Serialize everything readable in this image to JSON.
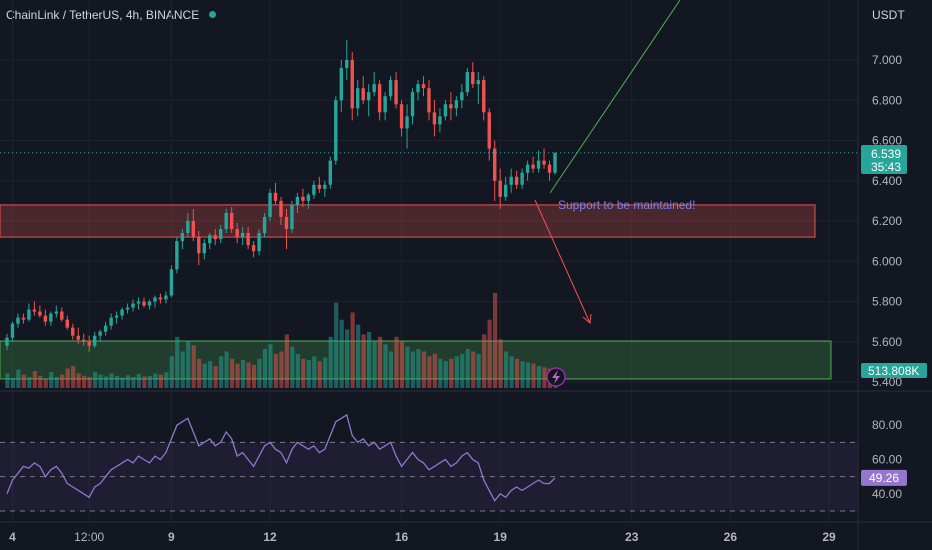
{
  "header": {
    "symbol": "ChainLink / TetherUS, 4h, BINANCE",
    "currency": "USDT"
  },
  "colors": {
    "up": "#26a69a",
    "down": "#ef5350",
    "text": "#b2b5be",
    "background": "#131722",
    "rsi": "#9575cd",
    "status": "#26a69a"
  },
  "chart_data": {
    "type": "candlestick",
    "y_ticks": [
      "7.000",
      "6.800",
      "6.600",
      "6.400",
      "6.200",
      "6.000",
      "5.800",
      "5.600",
      "5.400"
    ],
    "ylim": [
      5.4,
      7.0
    ],
    "x_ticks": [
      {
        "label": "4",
        "bar": 1
      },
      {
        "label": "12:00",
        "bar": 15
      },
      {
        "label": "9",
        "bar": 30
      },
      {
        "label": "12",
        "bar": 48
      },
      {
        "label": "16",
        "bar": 72
      },
      {
        "label": "19",
        "bar": 90
      },
      {
        "label": "23",
        "bar": 114
      },
      {
        "label": "26",
        "bar": 132
      },
      {
        "label": "29",
        "bar": 150
      }
    ],
    "ohlc": [
      [
        5.58,
        5.64,
        5.56,
        5.62
      ],
      [
        5.62,
        5.7,
        5.6,
        5.69
      ],
      [
        5.69,
        5.74,
        5.67,
        5.72
      ],
      [
        5.72,
        5.74,
        5.69,
        5.71
      ],
      [
        5.71,
        5.79,
        5.7,
        5.76
      ],
      [
        5.76,
        5.8,
        5.73,
        5.75
      ],
      [
        5.75,
        5.78,
        5.72,
        5.73
      ],
      [
        5.73,
        5.76,
        5.68,
        5.7
      ],
      [
        5.7,
        5.75,
        5.68,
        5.74
      ],
      [
        5.74,
        5.78,
        5.72,
        5.75
      ],
      [
        5.75,
        5.77,
        5.7,
        5.71
      ],
      [
        5.71,
        5.73,
        5.66,
        5.67
      ],
      [
        5.67,
        5.69,
        5.61,
        5.63
      ],
      [
        5.63,
        5.67,
        5.59,
        5.61
      ],
      [
        5.61,
        5.64,
        5.58,
        5.6
      ],
      [
        5.6,
        5.63,
        5.55,
        5.58
      ],
      [
        5.58,
        5.65,
        5.57,
        5.63
      ],
      [
        5.63,
        5.66,
        5.6,
        5.65
      ],
      [
        5.65,
        5.7,
        5.63,
        5.68
      ],
      [
        5.68,
        5.74,
        5.66,
        5.72
      ],
      [
        5.72,
        5.75,
        5.69,
        5.73
      ],
      [
        5.73,
        5.77,
        5.71,
        5.76
      ],
      [
        5.76,
        5.79,
        5.74,
        5.77
      ],
      [
        5.77,
        5.81,
        5.75,
        5.79
      ],
      [
        5.79,
        5.82,
        5.76,
        5.8
      ],
      [
        5.8,
        5.82,
        5.77,
        5.78
      ],
      [
        5.78,
        5.81,
        5.76,
        5.8
      ],
      [
        5.8,
        5.83,
        5.77,
        5.82
      ],
      [
        5.82,
        5.84,
        5.79,
        5.81
      ],
      [
        5.81,
        5.85,
        5.79,
        5.83
      ],
      [
        5.83,
        5.98,
        5.82,
        5.96
      ],
      [
        5.96,
        6.12,
        5.94,
        6.1
      ],
      [
        6.1,
        6.16,
        6.06,
        6.14
      ],
      [
        6.14,
        6.24,
        6.12,
        6.2
      ],
      [
        6.2,
        6.26,
        6.1,
        6.12
      ],
      [
        6.12,
        6.15,
        5.98,
        6.04
      ],
      [
        6.04,
        6.11,
        6.01,
        6.09
      ],
      [
        6.09,
        6.14,
        6.06,
        6.13
      ],
      [
        6.13,
        6.16,
        6.08,
        6.11
      ],
      [
        6.11,
        6.18,
        6.09,
        6.16
      ],
      [
        6.16,
        6.26,
        6.14,
        6.24
      ],
      [
        6.24,
        6.27,
        6.14,
        6.16
      ],
      [
        6.16,
        6.19,
        6.09,
        6.12
      ],
      [
        6.12,
        6.17,
        6.08,
        6.14
      ],
      [
        6.14,
        6.17,
        6.06,
        6.08
      ],
      [
        6.08,
        6.1,
        6.02,
        6.05
      ],
      [
        6.05,
        6.16,
        6.03,
        6.14
      ],
      [
        6.14,
        6.24,
        6.12,
        6.22
      ],
      [
        6.22,
        6.36,
        6.2,
        6.34
      ],
      [
        6.34,
        6.39,
        6.28,
        6.3
      ],
      [
        6.3,
        6.32,
        6.18,
        6.22
      ],
      [
        6.22,
        6.26,
        6.06,
        6.16
      ],
      [
        6.16,
        6.3,
        6.14,
        6.28
      ],
      [
        6.28,
        6.34,
        6.24,
        6.32
      ],
      [
        6.32,
        6.36,
        6.27,
        6.3
      ],
      [
        6.3,
        6.34,
        6.26,
        6.33
      ],
      [
        6.33,
        6.4,
        6.31,
        6.38
      ],
      [
        6.38,
        6.42,
        6.34,
        6.36
      ],
      [
        6.36,
        6.4,
        6.32,
        6.38
      ],
      [
        6.38,
        6.52,
        6.36,
        6.5
      ],
      [
        6.5,
        6.82,
        6.48,
        6.8
      ],
      [
        6.8,
        7.0,
        6.74,
        6.96
      ],
      [
        6.96,
        7.1,
        6.9,
        7.0
      ],
      [
        7.0,
        7.04,
        6.7,
        6.76
      ],
      [
        6.76,
        6.9,
        6.72,
        6.86
      ],
      [
        6.86,
        6.92,
        6.78,
        6.8
      ],
      [
        6.8,
        6.88,
        6.72,
        6.84
      ],
      [
        6.84,
        6.94,
        6.82,
        6.88
      ],
      [
        6.88,
        6.9,
        6.7,
        6.74
      ],
      [
        6.74,
        6.84,
        6.7,
        6.82
      ],
      [
        6.82,
        6.92,
        6.8,
        6.9
      ],
      [
        6.9,
        6.94,
        6.76,
        6.78
      ],
      [
        6.78,
        6.8,
        6.62,
        6.66
      ],
      [
        6.66,
        6.78,
        6.56,
        6.72
      ],
      [
        6.72,
        6.86,
        6.68,
        6.84
      ],
      [
        6.84,
        6.9,
        6.8,
        6.88
      ],
      [
        6.88,
        6.92,
        6.82,
        6.86
      ],
      [
        6.86,
        6.9,
        6.7,
        6.74
      ],
      [
        6.74,
        6.8,
        6.62,
        6.68
      ],
      [
        6.68,
        6.76,
        6.64,
        6.72
      ],
      [
        6.72,
        6.8,
        6.7,
        6.78
      ],
      [
        6.78,
        6.84,
        6.7,
        6.76
      ],
      [
        6.76,
        6.82,
        6.72,
        6.8
      ],
      [
        6.8,
        6.88,
        6.76,
        6.84
      ],
      [
        6.84,
        6.96,
        6.82,
        6.94
      ],
      [
        6.94,
        6.99,
        6.86,
        6.88
      ],
      [
        6.88,
        6.94,
        6.78,
        6.9
      ],
      [
        6.9,
        6.92,
        6.7,
        6.74
      ],
      [
        6.74,
        6.76,
        6.5,
        6.56
      ],
      [
        6.56,
        6.6,
        6.3,
        6.4
      ],
      [
        6.4,
        6.46,
        6.26,
        6.32
      ],
      [
        6.32,
        6.42,
        6.3,
        6.38
      ],
      [
        6.38,
        6.46,
        6.34,
        6.42
      ],
      [
        6.42,
        6.45,
        6.36,
        6.38
      ],
      [
        6.38,
        6.46,
        6.36,
        6.44
      ],
      [
        6.44,
        6.5,
        6.4,
        6.48
      ],
      [
        6.48,
        6.52,
        6.44,
        6.46
      ],
      [
        6.46,
        6.55,
        6.44,
        6.5
      ],
      [
        6.5,
        6.56,
        6.46,
        6.48
      ],
      [
        6.48,
        6.5,
        6.4,
        6.44
      ],
      [
        6.44,
        6.54,
        6.43,
        6.539
      ]
    ],
    "volume": [
      120,
      80,
      150,
      110,
      90,
      140,
      100,
      70,
      130,
      90,
      110,
      160,
      180,
      120,
      100,
      90,
      130,
      110,
      95,
      120,
      100,
      85,
      105,
      90,
      115,
      95,
      100,
      120,
      110,
      130,
      260,
      420,
      300,
      380,
      350,
      240,
      200,
      220,
      180,
      260,
      300,
      240,
      200,
      230,
      210,
      190,
      240,
      320,
      360,
      280,
      300,
      440,
      340,
      280,
      240,
      230,
      260,
      220,
      250,
      420,
      700,
      560,
      480,
      620,
      520,
      440,
      460,
      380,
      420,
      360,
      300,
      420,
      380,
      340,
      300,
      320,
      300,
      260,
      280,
      240,
      220,
      240,
      260,
      280,
      320,
      300,
      280,
      440,
      560,
      780,
      400,
      300,
      260,
      240,
      220,
      210,
      200,
      180,
      170,
      160,
      150
    ],
    "volume_label": "513.808K",
    "rsi": {
      "ticks": [
        "80.00",
        "60.00",
        "40.00"
      ],
      "ylim": [
        30,
        90
      ],
      "upper": 70,
      "mid": 50,
      "lower": 30,
      "current": "49.26",
      "values": [
        40,
        48,
        52,
        56,
        55,
        58,
        56,
        50,
        54,
        56,
        52,
        46,
        44,
        42,
        40,
        38,
        44,
        46,
        50,
        54,
        56,
        58,
        60,
        58,
        62,
        60,
        58,
        62,
        60,
        64,
        72,
        80,
        82,
        84,
        76,
        68,
        70,
        72,
        68,
        70,
        76,
        72,
        62,
        64,
        60,
        56,
        62,
        68,
        70,
        66,
        64,
        58,
        66,
        70,
        68,
        66,
        68,
        64,
        66,
        74,
        82,
        84,
        86,
        74,
        70,
        72,
        68,
        70,
        66,
        68,
        70,
        62,
        56,
        60,
        64,
        60,
        58,
        54,
        56,
        58,
        60,
        56,
        58,
        62,
        64,
        60,
        58,
        48,
        42,
        36,
        40,
        38,
        42,
        44,
        42,
        44,
        46,
        48,
        46,
        46,
        49.26
      ]
    },
    "price_badge": {
      "value": "6.539",
      "countdown": "35:43"
    },
    "annotations": {
      "support_text": "Support to be maintained!"
    }
  }
}
